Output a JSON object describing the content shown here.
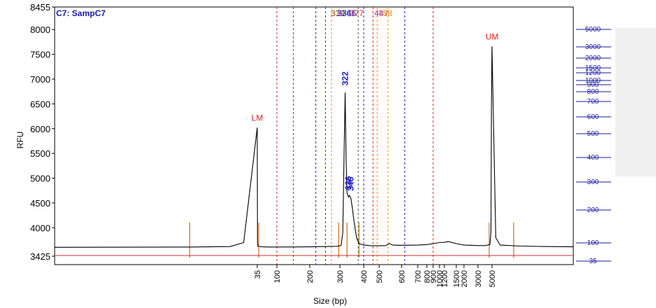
{
  "chart_data": {
    "type": "line",
    "sample_title": "C7: SampC7",
    "ylabel": "RFU",
    "xlabel": "Size (bp)",
    "ylim": [
      3425,
      8455
    ],
    "y_ticks": [
      "8455",
      "8000",
      "7500",
      "7000",
      "6500",
      "6000",
      "5500",
      "5000",
      "4500",
      "4000",
      "3425"
    ],
    "y_tick_values": [
      8455,
      8000,
      7500,
      7000,
      6500,
      6000,
      5500,
      5000,
      4500,
      4000,
      3425
    ],
    "x_ticks": [
      "35",
      "100",
      "200",
      "300",
      "400",
      "500",
      "600",
      "700",
      "800",
      "900",
      "1000",
      "1200",
      "1500",
      "2000",
      "3000",
      "5000"
    ],
    "x_tick_values": [
      35,
      100,
      200,
      300,
      400,
      500,
      600,
      700,
      800,
      900,
      1000,
      1200,
      1500,
      2000,
      3000,
      5000
    ],
    "right_ticks": [
      "5000",
      "3000",
      "2000",
      "1500",
      "1200",
      "1000",
      "900",
      "800",
      "700",
      "600",
      "500",
      "400",
      "300",
      "200",
      "100",
      "35"
    ],
    "right_tick_values": [
      5000,
      3000,
      2000,
      1500,
      1200,
      1000,
      900,
      800,
      700,
      600,
      500,
      400,
      300,
      200,
      100,
      35
    ],
    "peaks": [
      {
        "label": "LM",
        "size": 35,
        "rfu": 6020,
        "color": "#e02020"
      },
      {
        "label": "322",
        "size": 322,
        "rfu": 6730,
        "color": "#2020c0"
      },
      {
        "label": "336",
        "size": 336,
        "rfu": 4620,
        "color": "#2020c0"
      },
      {
        "label": "346",
        "size": 346,
        "rfu": 4600,
        "color": "#2020c0"
      },
      {
        "label": "UM",
        "size": 5000,
        "rfu": 7660,
        "color": "#e02020"
      }
    ],
    "top_labels": [
      {
        "text": "339",
        "color": "#8b4513"
      },
      {
        "text": "336",
        "color": "#2020c0"
      },
      {
        "text": "346",
        "color": "#2020c0"
      },
      {
        "text": "377",
        "color": "#e02020"
      },
      {
        "text": "487",
        "color": "#9932cc"
      },
      {
        "text": "458",
        "color": "#ff8c00"
      }
    ],
    "region_lines": [
      {
        "size": 100,
        "color": "#d02020",
        "style": "dash"
      },
      {
        "size": 150,
        "color": "#d02020",
        "style": "dash"
      },
      {
        "size": 220,
        "color": "#2020c0",
        "style": "dash"
      },
      {
        "size": 252,
        "color": "#2020c0",
        "style": "dash"
      },
      {
        "size": 272,
        "color": "#ff8c00",
        "style": "dash"
      },
      {
        "size": 377,
        "color": "#2a6a2a",
        "style": "dash"
      },
      {
        "size": 400,
        "color": "#2020c0",
        "style": "dash"
      },
      {
        "size": 460,
        "color": "#d02020",
        "style": "dash"
      },
      {
        "size": 487,
        "color": "#ff8c00",
        "style": "dash"
      },
      {
        "size": 540,
        "color": "#ff8c00",
        "style": "dash"
      },
      {
        "size": 620,
        "color": "#2020c0",
        "style": "dash"
      },
      {
        "size": 900,
        "color": "#d02020",
        "style": "dash"
      }
    ],
    "series": [
      {
        "trace": [
          [
            20,
            3605
          ],
          [
            30,
            3610
          ],
          [
            33,
            3620
          ],
          [
            34,
            3700
          ],
          [
            35,
            6020
          ],
          [
            36,
            3700
          ],
          [
            37,
            3625
          ],
          [
            50,
            3615
          ],
          [
            80,
            3610
          ],
          [
            100,
            3612
          ],
          [
            150,
            3612
          ],
          [
            200,
            3615
          ],
          [
            250,
            3620
          ],
          [
            290,
            3625
          ],
          [
            305,
            3640
          ],
          [
            312,
            3900
          ],
          [
            318,
            5600
          ],
          [
            322,
            6730
          ],
          [
            326,
            5400
          ],
          [
            330,
            4700
          ],
          [
            336,
            4620
          ],
          [
            340,
            4650
          ],
          [
            346,
            4600
          ],
          [
            352,
            4400
          ],
          [
            360,
            4100
          ],
          [
            370,
            3800
          ],
          [
            380,
            3680
          ],
          [
            400,
            3650
          ],
          [
            450,
            3635
          ],
          [
            500,
            3635
          ],
          [
            530,
            3640
          ],
          [
            545,
            3680
          ],
          [
            560,
            3650
          ],
          [
            600,
            3645
          ],
          [
            700,
            3650
          ],
          [
            800,
            3660
          ],
          [
            900,
            3680
          ],
          [
            1000,
            3700
          ],
          [
            1200,
            3705
          ],
          [
            1300,
            3720
          ],
          [
            1350,
            3710
          ],
          [
            1500,
            3680
          ],
          [
            2000,
            3650
          ],
          [
            3000,
            3640
          ],
          [
            4000,
            3640
          ],
          [
            4700,
            3660
          ],
          [
            4850,
            3900
          ],
          [
            4920,
            6400
          ],
          [
            5000,
            7660
          ],
          [
            5060,
            6000
          ],
          [
            5140,
            3800
          ],
          [
            5300,
            3650
          ],
          [
            6000,
            3630
          ],
          [
            7000,
            3620
          ],
          [
            8000,
            3615
          ]
        ]
      }
    ],
    "marker_lines": [
      {
        "size": 30,
        "color": "#d2691e"
      },
      {
        "size": 40,
        "color": "#d2691e"
      },
      {
        "size": 296,
        "color": "#d2691e"
      },
      {
        "size": 330,
        "color": "#d2691e"
      },
      {
        "size": 380,
        "color": "#d2691e"
      },
      {
        "size": 4600,
        "color": "#d2691e"
      },
      {
        "size": 5800,
        "color": "#d2691e"
      }
    ]
  }
}
